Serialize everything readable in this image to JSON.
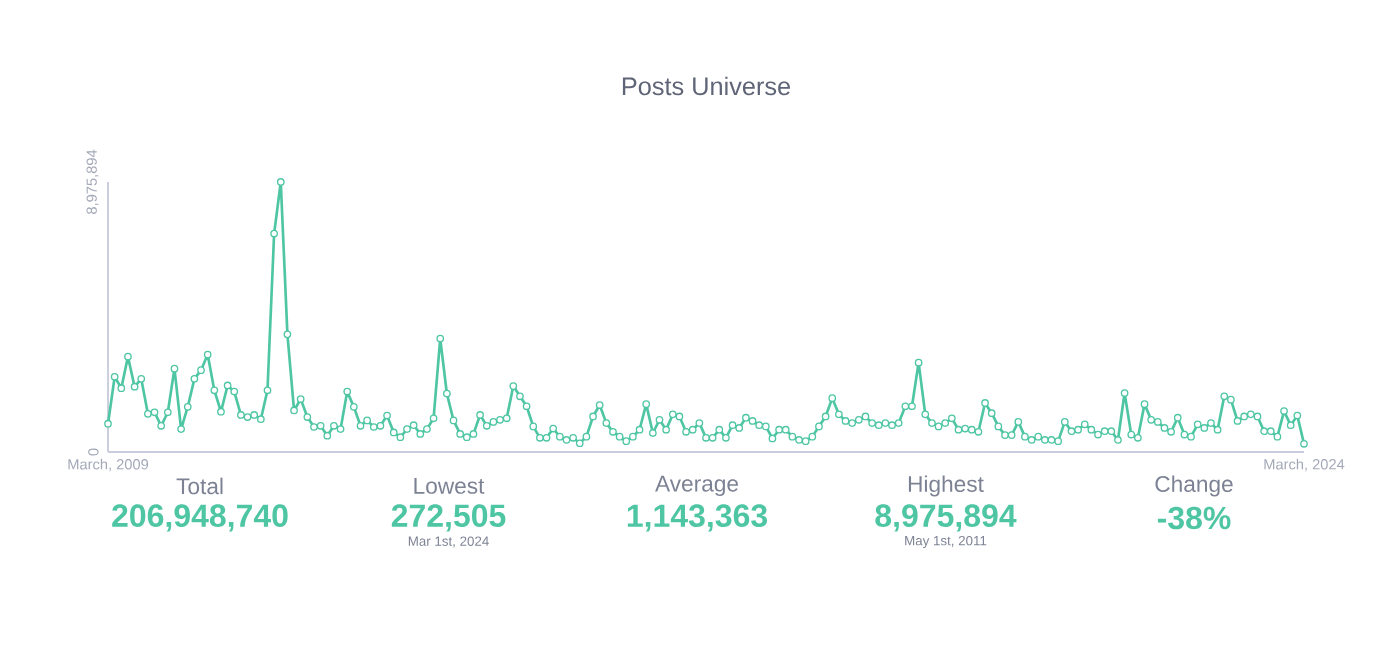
{
  "chart_data": [
    {
      "type": "line",
      "title": "Posts Universe",
      "color": "#4fc6a3",
      "marker": "circle",
      "line_style": "solid",
      "x": [
        "2009-03",
        "2009-04",
        "2009-05",
        "2009-06",
        "2009-07",
        "2009-08",
        "2009-09",
        "2009-10",
        "2009-11",
        "2009-12",
        "2010-01",
        "2010-02",
        "2010-03",
        "2010-04",
        "2010-05",
        "2010-06",
        "2010-07",
        "2010-08",
        "2010-09",
        "2010-10",
        "2010-11",
        "2010-12",
        "2011-01",
        "2011-02",
        "2011-03",
        "2011-04",
        "2011-05",
        "2011-06",
        "2011-07",
        "2011-08",
        "2011-09",
        "2011-10",
        "2011-11",
        "2011-12",
        "2012-01",
        "2012-02",
        "2012-03",
        "2012-04",
        "2012-05",
        "2012-06",
        "2012-07",
        "2012-08",
        "2012-09",
        "2012-10",
        "2012-11",
        "2012-12",
        "2013-01",
        "2013-02",
        "2013-03",
        "2013-04",
        "2013-05",
        "2013-06",
        "2013-07",
        "2013-08",
        "2013-09",
        "2013-10",
        "2013-11",
        "2013-12",
        "2014-01",
        "2014-02",
        "2014-03",
        "2014-04",
        "2014-05",
        "2014-06",
        "2014-07",
        "2014-08",
        "2014-09",
        "2014-10",
        "2014-11",
        "2014-12",
        "2015-01",
        "2015-02",
        "2015-03",
        "2015-04",
        "2015-05",
        "2015-06",
        "2015-07",
        "2015-08",
        "2015-09",
        "2015-10",
        "2015-11",
        "2015-12",
        "2016-01",
        "2016-02",
        "2016-03",
        "2016-04",
        "2016-05",
        "2016-06",
        "2016-07",
        "2016-08",
        "2016-09",
        "2016-10",
        "2016-11",
        "2016-12",
        "2017-01",
        "2017-02",
        "2017-03",
        "2017-04",
        "2017-05",
        "2017-06",
        "2017-07",
        "2017-08",
        "2017-09",
        "2017-10",
        "2017-11",
        "2017-12",
        "2018-01",
        "2018-02",
        "2018-03",
        "2018-04",
        "2018-05",
        "2018-06",
        "2018-07",
        "2018-08",
        "2018-09",
        "2018-10",
        "2018-11",
        "2018-12",
        "2019-01",
        "2019-02",
        "2019-03",
        "2019-04",
        "2019-05",
        "2019-06",
        "2019-07",
        "2019-08",
        "2019-09",
        "2019-10",
        "2019-11",
        "2019-12",
        "2020-01",
        "2020-02",
        "2020-03",
        "2020-04",
        "2020-05",
        "2020-06",
        "2020-07",
        "2020-08",
        "2020-09",
        "2020-10",
        "2020-11",
        "2020-12",
        "2021-01",
        "2021-02",
        "2021-03",
        "2021-04",
        "2021-05",
        "2021-06",
        "2021-07",
        "2021-08",
        "2021-09",
        "2021-10",
        "2021-11",
        "2021-12",
        "2022-01",
        "2022-02",
        "2022-03",
        "2022-04",
        "2022-05",
        "2022-06",
        "2022-07",
        "2022-08",
        "2022-09",
        "2022-10",
        "2022-11",
        "2022-12",
        "2023-01",
        "2023-02",
        "2023-03",
        "2023-04",
        "2023-05",
        "2023-06",
        "2023-07",
        "2023-08",
        "2023-09",
        "2023-10",
        "2023-11",
        "2023-12",
        "2024-01",
        "2024-02",
        "2024-03"
      ],
      "values": [
        940000,
        2500000,
        2120000,
        3170000,
        2170000,
        2430000,
        1270000,
        1320000,
        870000,
        1320000,
        2770000,
        760000,
        1500000,
        2430000,
        2720000,
        3240000,
        2050000,
        1340000,
        2210000,
        2010000,
        1230000,
        1160000,
        1230000,
        1090000,
        2050000,
        7260000,
        8975894,
        3910000,
        1380000,
        1760000,
        1160000,
        830000,
        870000,
        540000,
        870000,
        760000,
        2010000,
        1500000,
        870000,
        1050000,
        830000,
        870000,
        1210000,
        650000,
        490000,
        760000,
        890000,
        600000,
        760000,
        1120000,
        3770000,
        1940000,
        1050000,
        600000,
        490000,
        600000,
        1230000,
        870000,
        1000000,
        1070000,
        1120000,
        2190000,
        1850000,
        1520000,
        850000,
        470000,
        470000,
        780000,
        510000,
        400000,
        470000,
        290000,
        510000,
        1180000,
        1560000,
        960000,
        670000,
        510000,
        360000,
        510000,
        740000,
        1590000,
        630000,
        1070000,
        740000,
        1250000,
        1180000,
        670000,
        740000,
        960000,
        470000,
        470000,
        740000,
        470000,
        890000,
        800000,
        1140000,
        1030000,
        890000,
        850000,
        450000,
        740000,
        740000,
        510000,
        400000,
        360000,
        510000,
        850000,
        1180000,
        1790000,
        1250000,
        1030000,
        960000,
        1070000,
        1180000,
        960000,
        890000,
        960000,
        890000,
        960000,
        1520000,
        1520000,
        2970000,
        1250000,
        960000,
        850000,
        960000,
        1120000,
        740000,
        780000,
        740000,
        670000,
        1630000,
        1290000,
        850000,
        560000,
        560000,
        1000000,
        510000,
        400000,
        510000,
        400000,
        400000,
        360000,
        1000000,
        690000,
        740000,
        920000,
        740000,
        580000,
        690000,
        690000,
        400000,
        1960000,
        580000,
        470000,
        1590000,
        1070000,
        1000000,
        800000,
        670000,
        1140000,
        580000,
        510000,
        920000,
        800000,
        960000,
        740000,
        1850000,
        1740000,
        1030000,
        1180000,
        1250000,
        1180000,
        690000,
        690000,
        510000,
        1360000,
        890000,
        1210000,
        272505
      ],
      "xlim": [
        "2009-03",
        "2024-03"
      ],
      "xticks": [
        {
          "value": "2009-03",
          "label": "March, 2009"
        },
        {
          "value": "2024-03",
          "label": "March, 2024"
        }
      ],
      "ylim": [
        0,
        8975894
      ],
      "yticks": [
        0,
        {
          "value": 8975894,
          "label": "8,975,894"
        }
      ]
    },
    {
      "type": "other",
      "color": "#4fc6a3",
      "categories": [
        "Total",
        "Lowest",
        "Average",
        "Highest",
        "Change"
      ],
      "value_labels": [
        "206,948,740",
        "272,505",
        "1,143,363",
        "8,975,894",
        "-38%"
      ],
      "annotations": [
        "Mar 1st, 2024",
        "May 1st, 2011"
      ]
    }
  ]
}
